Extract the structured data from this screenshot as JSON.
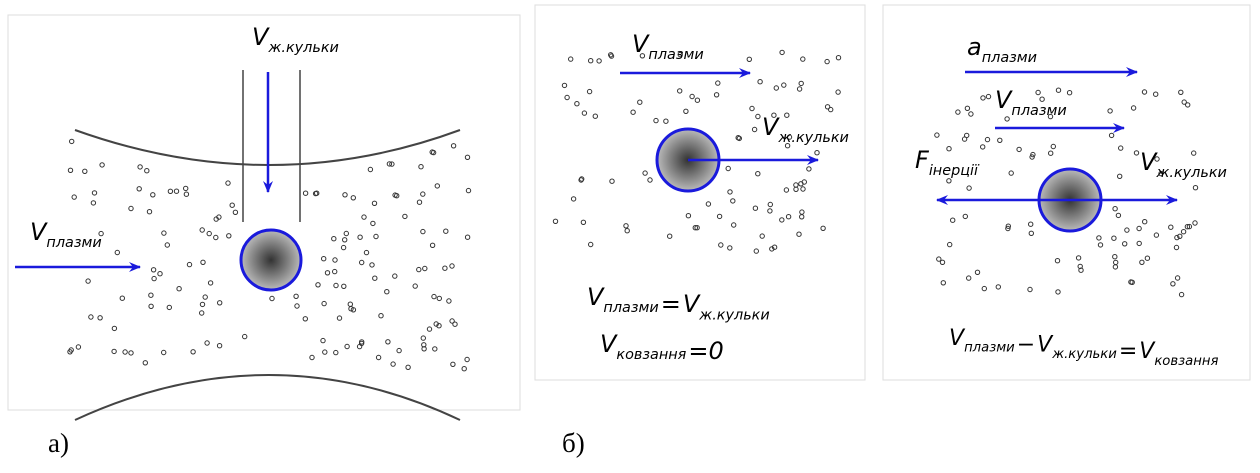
{
  "panel_a": {
    "caption": "а)",
    "v_ball": {
      "main": "V",
      "sub": "ж.кульки"
    },
    "v_plasma": {
      "main": "V",
      "sub": "плазми"
    }
  },
  "panel_b": {
    "caption": "б)",
    "left": {
      "v_plasma": {
        "main": "V",
        "sub": "плазми"
      },
      "v_ball": {
        "main": "V",
        "sub": "ж.кульки"
      },
      "equation_1": [
        {
          "main": "V",
          "sub": "плазми"
        },
        "=",
        {
          "main": "V",
          "sub": "ж.кульки"
        }
      ],
      "equation_2": [
        {
          "main": "V",
          "sub": "ковзання"
        },
        "=0"
      ]
    },
    "right": {
      "a_plasma": {
        "main": "a",
        "sub": "плазми"
      },
      "v_plasma": {
        "main": "V",
        "sub": "плазми"
      },
      "f_inertia": {
        "main": "F",
        "sub": "інерції"
      },
      "v_ball": {
        "main": "V",
        "sub": "ж.кульки"
      },
      "equation": [
        {
          "main": "V",
          "sub": "плазми"
        },
        "−",
        {
          "main": "V",
          "sub": "ж.кульки"
        },
        "=",
        {
          "main": "V",
          "sub": "ковзання"
        }
      ]
    }
  }
}
